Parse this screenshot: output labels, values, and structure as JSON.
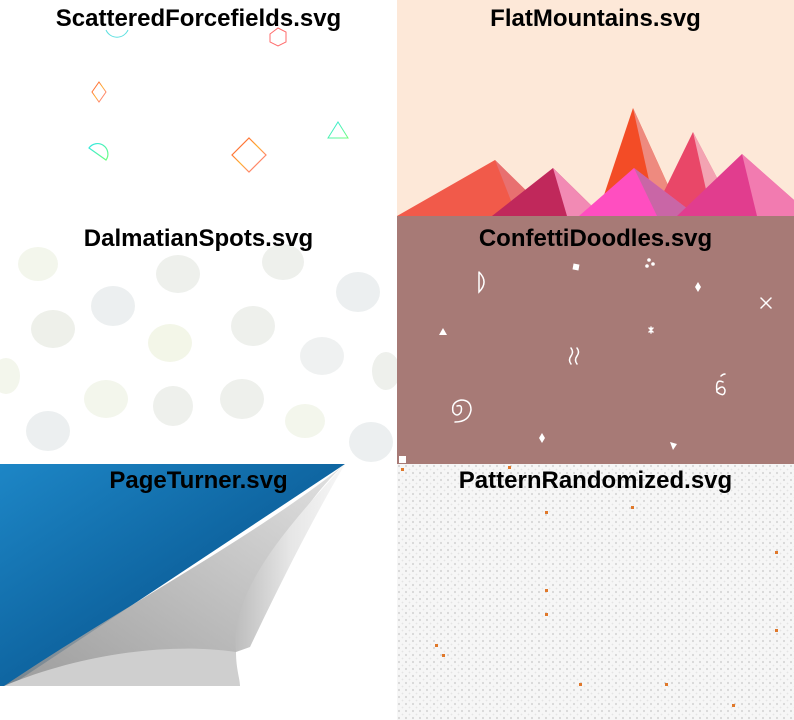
{
  "tiles": [
    {
      "title": "ScatteredForcefields.svg"
    },
    {
      "title": "FlatMountains.svg"
    },
    {
      "title": "DalmatianSpots.svg"
    },
    {
      "title": "ConfettiDoodles.svg"
    },
    {
      "title": "PageTurner.svg"
    },
    {
      "title": "PatternRandomized.svg"
    }
  ],
  "colors": {
    "flat_mountains_bg": "#fde8d8",
    "confetti_bg": "#a77a76",
    "page_turner_blue": "#0e6aa8",
    "pattern_accent": "#e0782a",
    "spot_tint": "#eef1ec"
  }
}
